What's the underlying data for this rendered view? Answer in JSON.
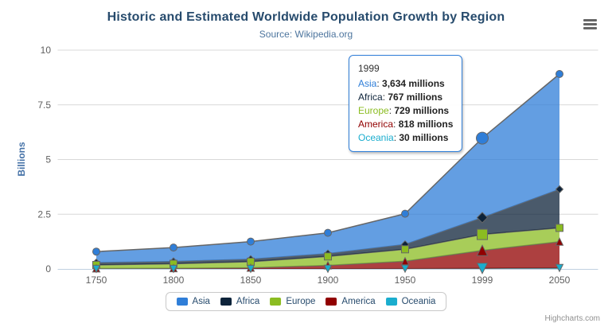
{
  "chart": {
    "title": "Historic and Estimated Worldwide Population Growth by Region",
    "subtitle": "Source: Wikipedia.org",
    "credits": "Highcharts.com"
  },
  "toolbar": {
    "menu_icon": "hamburger-menu"
  },
  "chart_data": {
    "type": "area",
    "stacking": "normal",
    "title": "Historic and Estimated Worldwide Population Growth by Region",
    "subtitle": "Source: Wikipedia.org",
    "categories": [
      "1750",
      "1800",
      "1850",
      "1900",
      "1950",
      "1999",
      "2050"
    ],
    "xlabel": "",
    "ylabel": "Billions",
    "ylim": [
      0,
      10
    ],
    "yticks": [
      0,
      2.5,
      5,
      7.5,
      10
    ],
    "values_unit": "millions",
    "grid": true,
    "legend_position": "bottom",
    "hover_category": "1999",
    "stack_top_to_bottom": [
      "Asia",
      "Africa",
      "Europe",
      "America",
      "Oceania"
    ],
    "series": [
      {
        "name": "Asia",
        "color": "#2f7ed8",
        "marker": "circle",
        "values": [
          502,
          635,
          809,
          947,
          1402,
          3634,
          5268
        ]
      },
      {
        "name": "Africa",
        "color": "#0d233a",
        "marker": "diamond",
        "values": [
          106,
          107,
          111,
          133,
          221,
          767,
          1766
        ]
      },
      {
        "name": "Europe",
        "color": "#8bbc21",
        "marker": "square",
        "values": [
          163,
          203,
          276,
          408,
          547,
          729,
          628
        ]
      },
      {
        "name": "America",
        "color": "#910000",
        "marker": "triangle-up",
        "values": [
          18,
          31,
          54,
          156,
          339,
          818,
          1201
        ]
      },
      {
        "name": "Oceania",
        "color": "#1aadce",
        "marker": "triangle-down",
        "values": [
          2,
          2,
          2,
          6,
          13,
          30,
          46
        ]
      }
    ]
  },
  "tooltip": {
    "header": "1999",
    "border_color": "#2f7ed8",
    "suffix": "millions",
    "rows": [
      {
        "name": "Asia",
        "color": "#2f7ed8",
        "value": "3,634"
      },
      {
        "name": "Africa",
        "color": "#0d233a",
        "value": "767"
      },
      {
        "name": "Europe",
        "color": "#8bbc21",
        "value": "729"
      },
      {
        "name": "America",
        "color": "#910000",
        "value": "818"
      },
      {
        "name": "Oceania",
        "color": "#1aadce",
        "value": "30"
      }
    ]
  },
  "legend": {
    "items": [
      {
        "label": "Asia",
        "color": "#2f7ed8"
      },
      {
        "label": "Africa",
        "color": "#0d233a"
      },
      {
        "label": "Europe",
        "color": "#8bbc21"
      },
      {
        "label": "America",
        "color": "#910000"
      },
      {
        "label": "Oceania",
        "color": "#1aadce"
      }
    ]
  },
  "axis_style": {
    "grid_color": "#d8d8d8",
    "axis_line_color": "#c0d0e0",
    "label_color": "#606060",
    "y_title_color": "#4572a7",
    "series_line_color": "#666666"
  }
}
